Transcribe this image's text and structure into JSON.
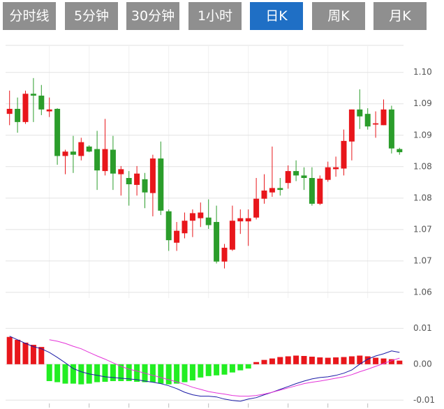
{
  "tabs": [
    "分时线",
    "5分钟",
    "30分钟",
    "1小时",
    "日K",
    "周K",
    "月K"
  ],
  "active_tab": 4,
  "chart_data": [
    {
      "type": "candlestick",
      "up_color": "#e8161b",
      "down_color": "#2b9d2b",
      "open": [
        1.0934,
        1.0942,
        1.0921,
        1.0966,
        1.0963,
        1.0938,
        1.0942,
        1.0867,
        1.0874,
        1.0867,
        1.0882,
        1.0878,
        1.0843,
        1.0877,
        1.0838,
        1.0832,
        1.0821,
        1.083,
        1.0808,
        1.0863,
        1.0779,
        1.0729,
        1.0744,
        1.0764,
        1.0768,
        1.0769,
        1.0762,
        1.0699,
        1.0718,
        1.0763,
        1.0763,
        1.0769,
        1.0799,
        1.0809,
        1.0816,
        1.0824,
        1.0843,
        1.0836,
        1.0832,
        1.0791,
        1.0829,
        1.0846,
        1.0847,
        1.089,
        1.0941,
        1.0934,
        1.0917,
        1.0916,
        1.0941,
        1.0878
      ],
      "high": [
        1.0971,
        1.096,
        1.0971,
        1.0991,
        1.098,
        1.096,
        1.0943,
        1.0877,
        1.0899,
        1.0896,
        1.0884,
        1.0907,
        1.0926,
        1.0899,
        1.0851,
        1.0843,
        1.0851,
        1.084,
        1.0869,
        1.089,
        1.0782,
        1.0762,
        1.0777,
        1.0782,
        1.0793,
        1.0798,
        1.0788,
        1.0727,
        1.0788,
        1.0782,
        1.0782,
        1.0832,
        1.0838,
        1.0882,
        1.0832,
        1.0852,
        1.086,
        1.0849,
        1.0849,
        1.0836,
        1.0858,
        1.0866,
        1.0909,
        1.0941,
        1.0973,
        1.0943,
        1.0938,
        1.0957,
        1.0947,
        1.088
      ],
      "low": [
        1.0916,
        1.0904,
        1.0918,
        1.0921,
        1.0932,
        1.0929,
        1.0853,
        1.0838,
        1.084,
        1.086,
        1.0873,
        1.0813,
        1.0836,
        1.0813,
        1.0804,
        1.0788,
        1.0804,
        1.0784,
        1.0771,
        1.0773,
        1.0716,
        1.0716,
        1.0736,
        1.0738,
        1.0754,
        1.0751,
        1.0696,
        1.0688,
        1.0716,
        1.0743,
        1.0724,
        1.0766,
        1.0791,
        1.0802,
        1.0804,
        1.0815,
        1.0827,
        1.0813,
        1.0788,
        1.0789,
        1.0826,
        1.0834,
        1.0836,
        1.086,
        1.091,
        1.0909,
        1.0896,
        1.0916,
        1.0871,
        1.0869
      ],
      "close": [
        1.0942,
        1.0921,
        1.0966,
        1.0963,
        1.0941,
        1.0941,
        1.0867,
        1.0874,
        1.0869,
        1.0889,
        1.0874,
        1.0844,
        1.0878,
        1.0839,
        1.0846,
        1.0822,
        1.0839,
        1.0809,
        1.0863,
        1.078,
        1.0733,
        1.0748,
        1.0764,
        1.0776,
        1.0777,
        1.0757,
        1.0699,
        1.0721,
        1.0764,
        1.0768,
        1.0768,
        1.0799,
        1.0812,
        1.0816,
        1.0813,
        1.0843,
        1.0836,
        1.0832,
        1.0791,
        1.0831,
        1.0849,
        1.0849,
        1.0891,
        1.0941,
        1.093,
        1.0914,
        1.0919,
        1.0941,
        1.0879,
        1.0873
      ],
      "ylim": [
        1.0641,
        1.1043
      ],
      "yticks": [
        {
          "value": 1.1,
          "label": "1.10"
        },
        {
          "value": 1.095,
          "label": "1.09"
        },
        {
          "value": 1.09,
          "label": "1.09"
        },
        {
          "value": 1.085,
          "label": "1.08"
        },
        {
          "value": 1.08,
          "label": "1.08"
        },
        {
          "value": 1.075,
          "label": "1.07"
        },
        {
          "value": 1.07,
          "label": "1.07"
        },
        {
          "value": 1.065,
          "label": "1.06"
        }
      ],
      "grid": true
    },
    {
      "type": "macd",
      "up_color": "#e8161b",
      "down_color": "#22ee22",
      "histogram": [
        0.0076,
        0.0068,
        0.006,
        0.0054,
        0.0048,
        -0.0047,
        -0.005,
        -0.0054,
        -0.0054,
        -0.0056,
        -0.0054,
        -0.005,
        -0.0049,
        -0.0047,
        -0.0047,
        -0.0047,
        -0.0049,
        -0.005,
        -0.005,
        -0.0054,
        -0.0056,
        -0.0054,
        -0.005,
        -0.0045,
        -0.0037,
        -0.0033,
        -0.0031,
        -0.0029,
        -0.0023,
        -0.0017,
        -0.0012,
        0.0006,
        0.0012,
        0.0016,
        0.002,
        0.0022,
        0.0024,
        0.0023,
        0.0021,
        0.0019,
        0.0018,
        0.0019,
        0.002,
        0.0022,
        0.0024,
        0.0022,
        0.0018,
        0.0016,
        0.0014,
        0.001
      ],
      "series": [
        {
          "color": "#1a1aa6",
          "values": [
            0.0078,
            0.0068,
            0.0058,
            0.0049,
            0.0043,
            0.0033,
            0.0019,
            0.0004,
            -0.0012,
            -0.0021,
            -0.0027,
            -0.0031,
            -0.0035,
            -0.0037,
            -0.0039,
            -0.0041,
            -0.0043,
            -0.0047,
            -0.005,
            -0.0054,
            -0.006,
            -0.0068,
            -0.0078,
            -0.0085,
            -0.0089,
            -0.0089,
            -0.0091,
            -0.0097,
            -0.0101,
            -0.0103,
            -0.0097,
            -0.0093,
            -0.0085,
            -0.0078,
            -0.007,
            -0.0062,
            -0.0054,
            -0.0047,
            -0.0041,
            -0.0037,
            -0.0035,
            -0.0031,
            -0.0025,
            -0.0016,
            0,
            0.0014,
            0.0023,
            0.0029,
            0.0037,
            0.0033
          ]
        },
        {
          "color": "#e433d8",
          "values": [
            null,
            null,
            null,
            null,
            null,
            0.0068,
            0.0064,
            0.0058,
            0.005,
            0.0043,
            0.0033,
            0.0023,
            0.0014,
            0.0004,
            -0.0006,
            -0.0014,
            -0.0019,
            -0.0025,
            -0.0031,
            -0.0037,
            -0.0043,
            -0.0049,
            -0.0056,
            -0.0064,
            -0.007,
            -0.0076,
            -0.008,
            -0.0083,
            -0.0087,
            -0.0089,
            -0.0089,
            -0.0087,
            -0.0083,
            -0.0078,
            -0.0072,
            -0.0066,
            -0.006,
            -0.0054,
            -0.005,
            -0.0047,
            -0.0043,
            -0.0039,
            -0.0035,
            -0.0029,
            -0.0021,
            -0.0014,
            -0.0006,
            0.0002,
            0.001,
            0.0017
          ]
        }
      ],
      "ylim": [
        -0.0113,
        0.0159
      ],
      "yticks": [
        0.01,
        {
          "value": 0,
          "label": "0.00"
        },
        -0.01
      ],
      "grid": true
    }
  ]
}
